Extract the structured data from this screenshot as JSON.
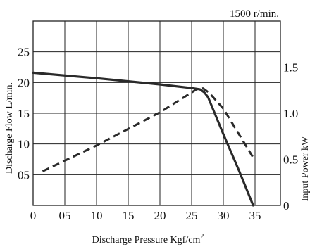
{
  "chart_data": {
    "type": "line",
    "title": "",
    "annotation": "1500 r/min.",
    "xlabel": "Discharge Pressure Kgf/cm",
    "xlabel_superscript": "2",
    "ylabel_left": "Discharge Flow L/min.",
    "ylabel_right": "Input Power kW",
    "xlim": [
      0,
      39
    ],
    "ylim_left": [
      0,
      30
    ],
    "ylim_right": [
      0,
      2
    ],
    "grid": true,
    "x_ticks": [
      {
        "value": 0,
        "label": "0"
      },
      {
        "value": 5,
        "label": "05"
      },
      {
        "value": 10,
        "label": "10"
      },
      {
        "value": 15,
        "label": "15"
      },
      {
        "value": 20,
        "label": "20"
      },
      {
        "value": 25,
        "label": "25"
      },
      {
        "value": 30,
        "label": "30"
      },
      {
        "value": 35,
        "label": "35"
      }
    ],
    "y_left_ticks": [
      {
        "value": 5,
        "label": "05"
      },
      {
        "value": 10,
        "label": "10"
      },
      {
        "value": 15,
        "label": "15"
      },
      {
        "value": 20,
        "label": "20"
      },
      {
        "value": 25,
        "label": "25"
      }
    ],
    "y_right_ticks": [
      {
        "value": 0,
        "label": "0"
      },
      {
        "value": 0.5,
        "label": "0.5"
      },
      {
        "value": 1.0,
        "label": "1.0"
      },
      {
        "value": 1.5,
        "label": "1.5"
      }
    ],
    "series": [
      {
        "axis": "left",
        "style": "solid",
        "x": [
          0,
          10,
          20,
          25,
          26.3,
          27,
          27.6,
          30,
          32.5,
          34.7
        ],
        "y": [
          21.6,
          20.7,
          19.7,
          19.1,
          18.9,
          18.4,
          17.6,
          11.6,
          5.6,
          0
        ]
      },
      {
        "axis": "right",
        "style": "dashed",
        "x": [
          1.5,
          10,
          20,
          25.8,
          26.8,
          27.8,
          30,
          34.7
        ],
        "y": [
          0.37,
          0.65,
          1.01,
          1.26,
          1.27,
          1.22,
          1.05,
          0.52
        ]
      }
    ]
  }
}
